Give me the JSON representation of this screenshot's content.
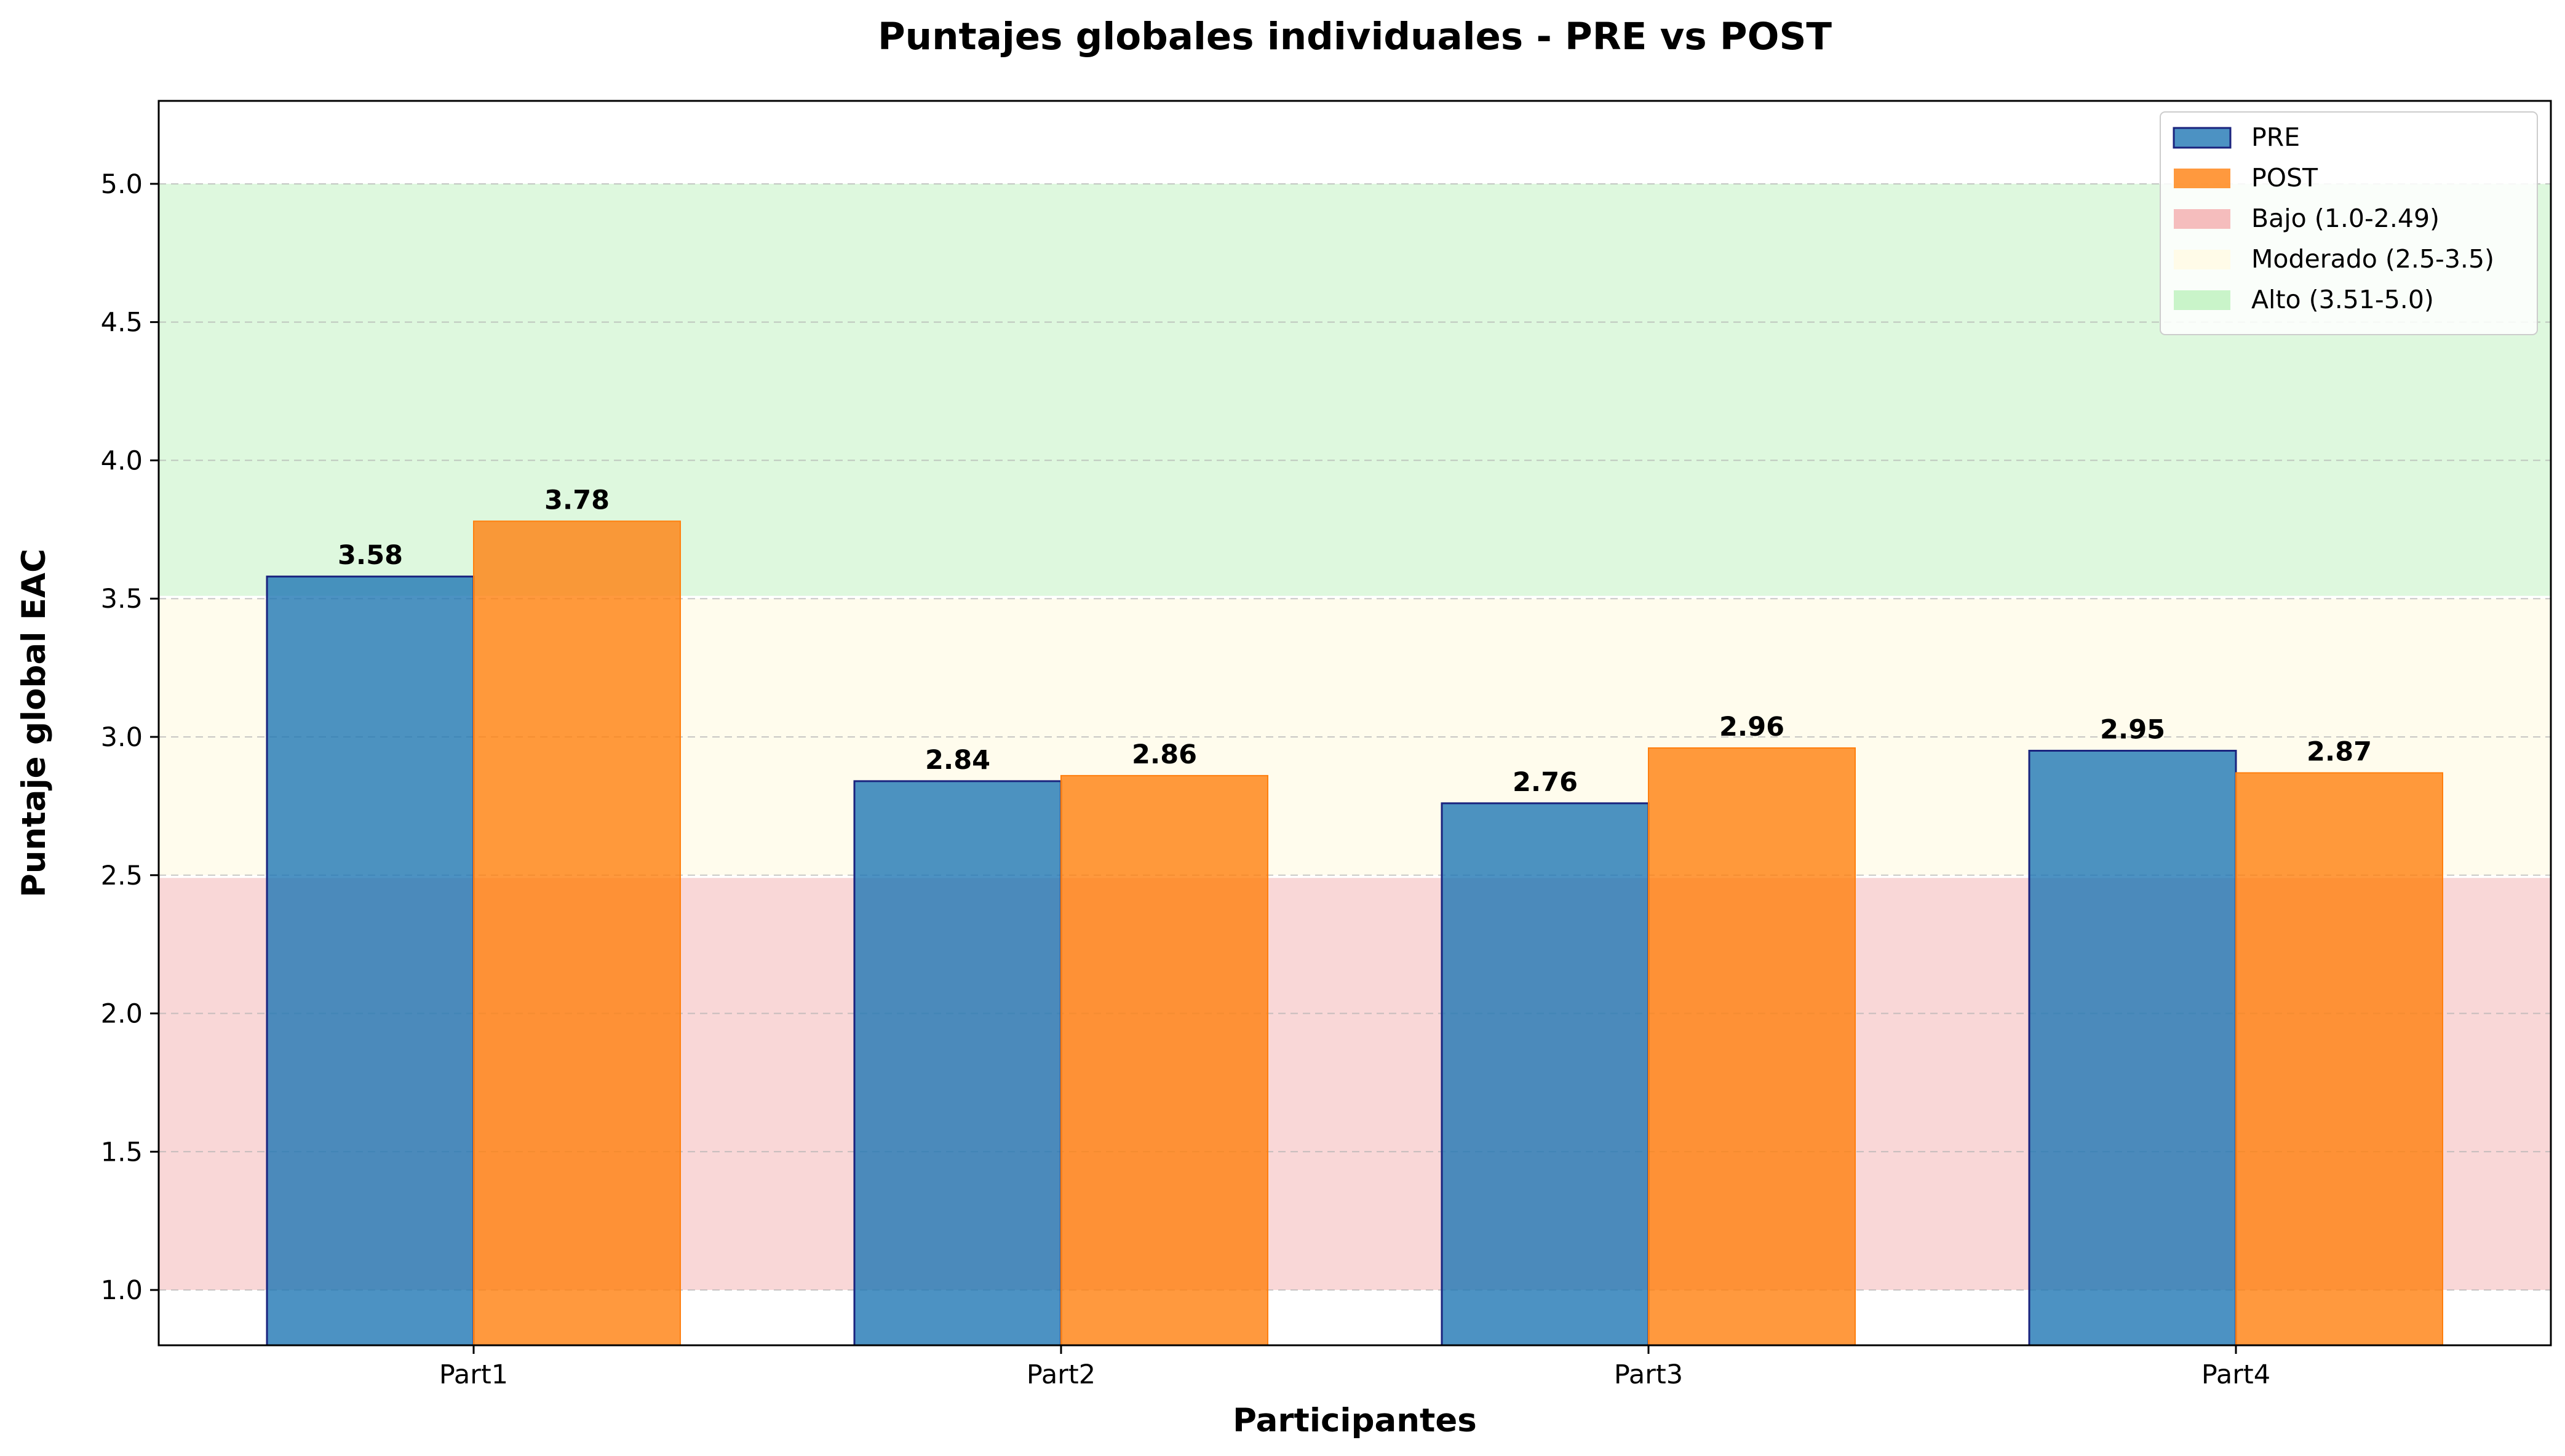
{
  "chart_data": {
    "type": "bar",
    "title": "Puntajes globales individuales - PRE vs POST",
    "xlabel": "Participantes",
    "ylabel": "Puntaje global EAC",
    "categories": [
      "Part1",
      "Part2",
      "Part3",
      "Part4"
    ],
    "series": [
      {
        "name": "PRE",
        "values": [
          3.58,
          2.84,
          2.76,
          2.95
        ],
        "labels": [
          "3.58",
          "2.84",
          "2.76",
          "2.95"
        ],
        "color": "#1f77b4",
        "edge": "#1a237e"
      },
      {
        "name": "POST",
        "values": [
          3.78,
          2.86,
          2.96,
          2.87
        ],
        "labels": [
          "3.78",
          "2.86",
          "2.96",
          "2.87"
        ],
        "color": "#ff7f0e",
        "edge": "#ff7f0e"
      }
    ],
    "bands": [
      {
        "name": "Bajo (1.0-2.49)",
        "from": 1.0,
        "to": 2.49,
        "color": "#f4b6b6"
      },
      {
        "name": "Moderado (2.5-3.5)",
        "from": 2.5,
        "to": 3.5,
        "color": "#fffbe6"
      },
      {
        "name": "Alto (3.51-5.0)",
        "from": 3.51,
        "to": 5.0,
        "color": "#c3f3c3"
      }
    ],
    "ylim": [
      0.8,
      5.3
    ],
    "yticks": [
      "1.0",
      "1.5",
      "2.0",
      "2.5",
      "3.0",
      "3.5",
      "4.0",
      "4.5",
      "5.0"
    ],
    "grid": "horizontal dashed",
    "legend_position": "top-right"
  }
}
